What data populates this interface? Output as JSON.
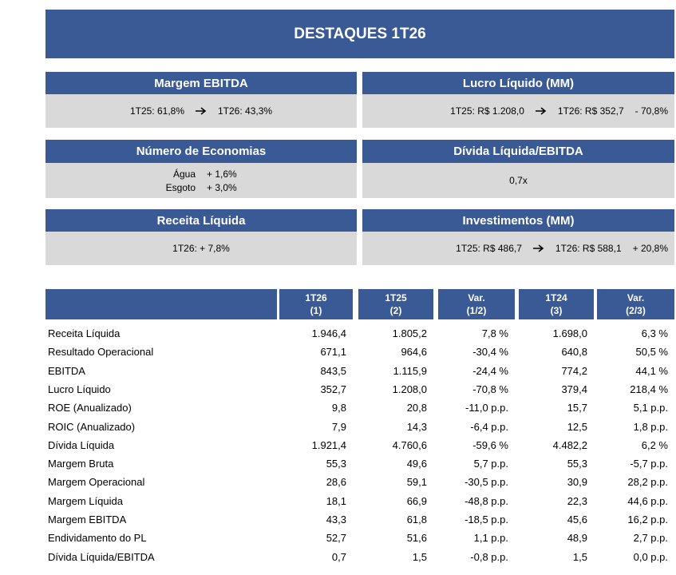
{
  "header": {
    "title": "DESTAQUES 1T26"
  },
  "cards": [
    {
      "title": "Margem EBITDA",
      "before": "1T25:  61,8%",
      "after": "1T26:  43,3%"
    },
    {
      "title": "Lucro Líquido (MM)",
      "before": "1T25: R$ 1.208,0",
      "after": "1T26: R$ 352,7",
      "change": "- 70,8%"
    },
    {
      "title": "Número de Economias",
      "rows": [
        [
          "Água",
          "+ 1,6%"
        ],
        [
          "Esgoto",
          "+ 3,0%"
        ]
      ]
    },
    {
      "title": "Dívida Líquida/EBITDA",
      "text": "0,7x"
    },
    {
      "title": "Receita Líquida",
      "text": "1T26: + 7,8%"
    },
    {
      "title": "Investimentos (MM)",
      "before": "1T25: R$ 486,7",
      "after": "1T26: R$ 588,1",
      "change": "+ 20,8%"
    }
  ],
  "table": {
    "columns": [
      {
        "top": "1T26",
        "sub": "(1)"
      },
      {
        "top": "1T25",
        "sub": "(2)"
      },
      {
        "top": "Var.",
        "sub": "(1/2)"
      },
      {
        "top": "1T24",
        "sub": "(3)"
      },
      {
        "top": "Var.",
        "sub": "(2/3)"
      }
    ],
    "rows": [
      [
        "Receita Líquida",
        "1.946,4",
        "1.805,2",
        "7,8 %",
        "1.698,0",
        "6,3 %"
      ],
      [
        "Resultado Operacional",
        "671,1",
        "964,6",
        "-30,4 %",
        "640,8",
        "50,5 %"
      ],
      [
        "EBITDA",
        "843,5",
        "1.115,9",
        "-24,4 %",
        "774,2",
        "44,1 %"
      ],
      [
        "Lucro Líquido",
        "352,7",
        "1.208,0",
        "-70,8 %",
        "379,4",
        "218,4 %"
      ],
      [
        "ROE (Anualizado)",
        "9,8",
        "20,8",
        "-11,0 p.p.",
        "15,7",
        "5,1 p.p."
      ],
      [
        "ROIC (Anualizado)",
        "7,9",
        "14,3",
        "-6,4 p.p.",
        "12,5",
        "1,8 p.p."
      ],
      [
        "Dívida Líquida",
        "1.921,4",
        "4.760,6",
        "-59,6 %",
        "4.482,2",
        "6,2 %"
      ],
      [
        "Margem Bruta",
        "55,3",
        "49,6",
        "5,7 p.p.",
        "55,3",
        "-5,7 p.p."
      ],
      [
        "Margem Operacional",
        "28,6",
        "59,1",
        "-30,5 p.p.",
        "30,9",
        "28,2 p.p."
      ],
      [
        "Margem Líquida",
        "18,1",
        "66,9",
        "-48,8 p.p.",
        "22,3",
        "44,6 p.p."
      ],
      [
        "Margem EBITDA",
        "43,3",
        "61,8",
        "-18,5 p.p.",
        "45,6",
        "16,2 p.p."
      ],
      [
        "Endividamento do PL",
        "52,7",
        "51,6",
        "1,1 p.p.",
        "48,9",
        "2,7 p.p."
      ],
      [
        "Dívida Líquida/EBITDA",
        "0,7",
        "1,5",
        "-0,8 p.p.",
        "1,5",
        "0,0 p.p."
      ]
    ]
  }
}
